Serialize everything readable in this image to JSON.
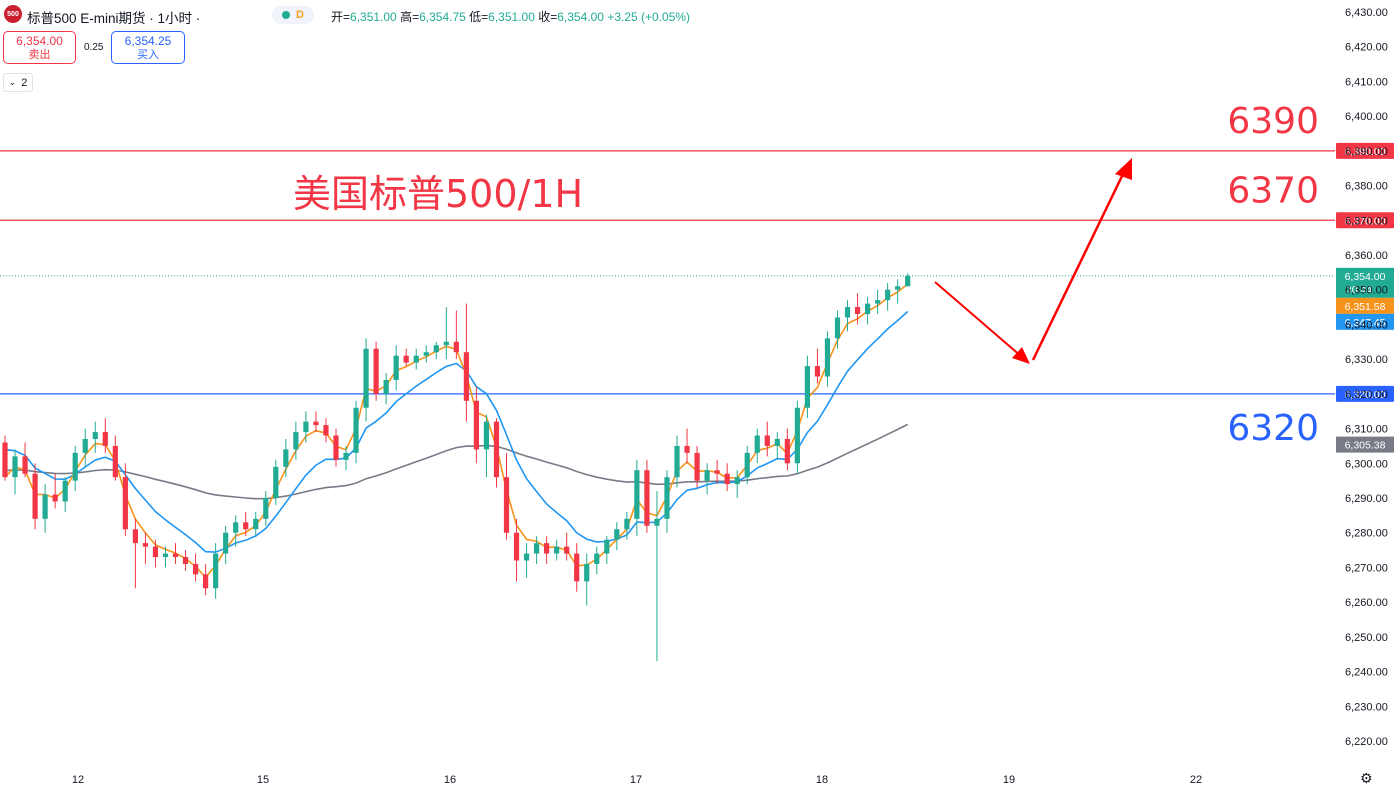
{
  "header": {
    "logo_text": "500",
    "title": "标普500 E-mini期货 · 1小时 ·",
    "status_tag": "D",
    "ohlc": [
      {
        "k": "开=",
        "v": "6,351.00"
      },
      {
        "k": "高=",
        "v": "6,354.75"
      },
      {
        "k": "低=",
        "v": "6,351.00"
      },
      {
        "k": "收=",
        "v": "6,354.00"
      },
      {
        "k": "",
        "v": "+3.25 (+0.05%)"
      }
    ]
  },
  "trade": {
    "sell_price": "6,354.00",
    "sell_label": "卖出",
    "spread": "0.25",
    "buy_price": "6,354.25",
    "buy_label": "买入",
    "quantity": "2"
  },
  "colors": {
    "up": "#22ab94",
    "down": "#f23645",
    "red_line": "#f23645",
    "blue_line": "#2962ff",
    "ma_fast": "#f7931a",
    "ma_mid": "#2196f3",
    "ma_slow": "#787b86"
  },
  "icons": [
    "chevron-down-icon",
    "settings-gear-icon"
  ],
  "chart_data": {
    "type": "candlestick",
    "title": "美国标普500/1H",
    "y_axis_ticks": [
      "6,430.00",
      "6,420.00",
      "6,410.00",
      "6,400.00",
      "6,390.00",
      "6,380.00",
      "6,370.00",
      "6,360.00",
      "6,350.00",
      "6,340.00",
      "6,330.00",
      "6,320.00",
      "6,310.00",
      "6,300.00",
      "6,290.00",
      "6,280.00",
      "6,270.00",
      "6,260.00",
      "6,250.00",
      "6,240.00",
      "6,230.00",
      "6,220.00"
    ],
    "ylim": [
      6214,
      6432
    ],
    "x_axis_ticks": [
      "12",
      "15",
      "16",
      "17",
      "18",
      "19",
      "22"
    ],
    "horizontal_lines": [
      {
        "value": 6390,
        "label": "6,390.00",
        "annotation": "6390",
        "color": "red"
      },
      {
        "value": 6370,
        "label": "6,370.00",
        "annotation": "6370",
        "color": "red"
      },
      {
        "value": 6320,
        "label": "6,320.00",
        "annotation": "6320",
        "color": "blue"
      }
    ],
    "last_price": {
      "value": 6354.0,
      "label": "6,354.00",
      "countdown": "30:44"
    },
    "ma_badges": [
      {
        "value": 6351.58,
        "label": "6,351.58",
        "series": "ma_fast"
      },
      {
        "value": 6347.45,
        "label": "6,347.45",
        "series": "ma_mid"
      },
      {
        "value": 6305.38,
        "label": "6,305.38",
        "series": "ma_slow"
      }
    ],
    "candles": [
      [
        6306,
        6308,
        6295,
        6296
      ],
      [
        6296,
        6304,
        6291,
        6302
      ],
      [
        6302,
        6306,
        6296,
        6297
      ],
      [
        6297,
        6300,
        6281,
        6284
      ],
      [
        6284,
        6294,
        6280,
        6291
      ],
      [
        6291,
        6297,
        6287,
        6289
      ],
      [
        6289,
        6296,
        6286,
        6295
      ],
      [
        6295,
        6305,
        6292,
        6303
      ],
      [
        6303,
        6310,
        6299,
        6307
      ],
      [
        6307,
        6312,
        6303,
        6309
      ],
      [
        6309,
        6313,
        6303,
        6305
      ],
      [
        6305,
        6308,
        6295,
        6296
      ],
      [
        6296,
        6300,
        6279,
        6281
      ],
      [
        6281,
        6284,
        6264,
        6277
      ],
      [
        6277,
        6280,
        6271,
        6276
      ],
      [
        6276,
        6278,
        6270,
        6273
      ],
      [
        6273,
        6276,
        6270,
        6274
      ],
      [
        6274,
        6277,
        6271,
        6273
      ],
      [
        6273,
        6275,
        6269,
        6271
      ],
      [
        6271,
        6274,
        6266,
        6268
      ],
      [
        6268,
        6271,
        6262,
        6264
      ],
      [
        6264,
        6277,
        6261,
        6274
      ],
      [
        6274,
        6282,
        6271,
        6280
      ],
      [
        6280,
        6285,
        6276,
        6283
      ],
      [
        6283,
        6286,
        6279,
        6281
      ],
      [
        6281,
        6286,
        6279,
        6284
      ],
      [
        6284,
        6292,
        6282,
        6290
      ],
      [
        6290,
        6301,
        6288,
        6299
      ],
      [
        6299,
        6307,
        6296,
        6304
      ],
      [
        6304,
        6312,
        6301,
        6309
      ],
      [
        6309,
        6315,
        6306,
        6312
      ],
      [
        6312,
        6315,
        6309,
        6311
      ],
      [
        6311,
        6313,
        6306,
        6308
      ],
      [
        6308,
        6310,
        6299,
        6301
      ],
      [
        6301,
        6305,
        6298,
        6303
      ],
      [
        6303,
        6318,
        6300,
        6316
      ],
      [
        6316,
        6336,
        6312,
        6333
      ],
      [
        6333,
        6335,
        6318,
        6320
      ],
      [
        6320,
        6326,
        6317,
        6324
      ],
      [
        6324,
        6334,
        6321,
        6331
      ],
      [
        6331,
        6333,
        6328,
        6329
      ],
      [
        6329,
        6333,
        6327,
        6331
      ],
      [
        6331,
        6334,
        6329,
        6332
      ],
      [
        6332,
        6335,
        6330,
        6334
      ],
      [
        6334,
        6345,
        6330,
        6335
      ],
      [
        6335,
        6344,
        6330,
        6332
      ],
      [
        6332,
        6346,
        6312,
        6318
      ],
      [
        6318,
        6322,
        6300,
        6304
      ],
      [
        6304,
        6314,
        6296,
        6312
      ],
      [
        6312,
        6313,
        6293,
        6296
      ],
      [
        6296,
        6303,
        6278,
        6280
      ],
      [
        6280,
        6284,
        6266,
        6272
      ],
      [
        6272,
        6277,
        6267,
        6274
      ],
      [
        6274,
        6279,
        6271,
        6277
      ],
      [
        6277,
        6279,
        6271,
        6274
      ],
      [
        6274,
        6278,
        6272,
        6276
      ],
      [
        6276,
        6280,
        6272,
        6274
      ],
      [
        6274,
        6277,
        6263,
        6266
      ],
      [
        6266,
        6274,
        6259,
        6271
      ],
      [
        6271,
        6276,
        6268,
        6274
      ],
      [
        6274,
        6279,
        6271,
        6278
      ],
      [
        6278,
        6283,
        6275,
        6281
      ],
      [
        6281,
        6286,
        6278,
        6284
      ],
      [
        6284,
        6301,
        6279,
        6298
      ],
      [
        6298,
        6301,
        6280,
        6282
      ],
      [
        6282,
        6292,
        6243,
        6284
      ],
      [
        6284,
        6298,
        6280,
        6296
      ],
      [
        6296,
        6308,
        6293,
        6305
      ],
      [
        6305,
        6310,
        6300,
        6303
      ],
      [
        6303,
        6305,
        6293,
        6295
      ],
      [
        6295,
        6300,
        6291,
        6298
      ],
      [
        6298,
        6301,
        6294,
        6297
      ],
      [
        6297,
        6300,
        6292,
        6294
      ],
      [
        6294,
        6298,
        6290,
        6296
      ],
      [
        6296,
        6305,
        6294,
        6303
      ],
      [
        6303,
        6310,
        6300,
        6308
      ],
      [
        6308,
        6312,
        6302,
        6305
      ],
      [
        6305,
        6309,
        6301,
        6307
      ],
      [
        6307,
        6310,
        6298,
        6300
      ],
      [
        6300,
        6318,
        6297,
        6316
      ],
      [
        6316,
        6331,
        6313,
        6328
      ],
      [
        6328,
        6333,
        6323,
        6325
      ],
      [
        6325,
        6338,
        6322,
        6336
      ],
      [
        6336,
        6344,
        6333,
        6342
      ],
      [
        6342,
        6347,
        6338,
        6345
      ],
      [
        6345,
        6349,
        6340,
        6343
      ],
      [
        6343,
        6348,
        6340,
        6346
      ],
      [
        6346,
        6350,
        6343,
        6347
      ],
      [
        6347,
        6352,
        6344,
        6350
      ],
      [
        6350,
        6353,
        6346,
        6351
      ],
      [
        6351,
        6354.75,
        6351,
        6354
      ]
    ]
  }
}
